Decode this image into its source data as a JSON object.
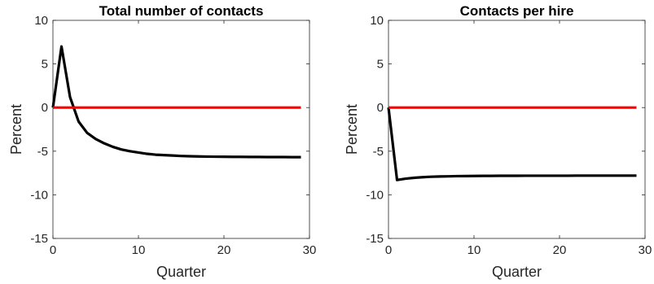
{
  "chart_data": [
    {
      "type": "line",
      "title": "Total number of contacts",
      "xlabel": "Quarter",
      "ylabel": "Percent",
      "xlim": [
        0,
        30
      ],
      "ylim": [
        -15,
        10
      ],
      "xticks": [
        "0",
        "10",
        "20",
        "30"
      ],
      "yticks": [
        "10",
        "5",
        "0",
        "-5",
        "-10",
        "-15"
      ],
      "grid": false,
      "series": [
        {
          "color": "#000000",
          "x": [
            0,
            1,
            2,
            3,
            4,
            5,
            6,
            7,
            8,
            9,
            10,
            11,
            12,
            13,
            14,
            15,
            16,
            17,
            18,
            19,
            20,
            21,
            22,
            23,
            24,
            25,
            26,
            27,
            28,
            29
          ],
          "values": [
            0,
            7.0,
            1.2,
            -1.6,
            -2.9,
            -3.6,
            -4.1,
            -4.5,
            -4.8,
            -5.0,
            -5.15,
            -5.3,
            -5.4,
            -5.45,
            -5.5,
            -5.55,
            -5.58,
            -5.6,
            -5.62,
            -5.63,
            -5.64,
            -5.65,
            -5.65,
            -5.66,
            -5.66,
            -5.67,
            -5.67,
            -5.67,
            -5.68,
            -5.68
          ]
        },
        {
          "color": "#ff0000",
          "x": [
            0,
            29
          ],
          "values": [
            0,
            0
          ]
        }
      ]
    },
    {
      "type": "line",
      "title": "Contacts per hire",
      "xlabel": "Quarter",
      "ylabel": "Percent",
      "xlim": [
        0,
        30
      ],
      "ylim": [
        -15,
        10
      ],
      "xticks": [
        "0",
        "10",
        "20",
        "30"
      ],
      "yticks": [
        "10",
        "5",
        "0",
        "-5",
        "-10",
        "-15"
      ],
      "grid": false,
      "series": [
        {
          "color": "#000000",
          "x": [
            0,
            1,
            2,
            3,
            4,
            5,
            6,
            7,
            8,
            9,
            10,
            11,
            12,
            13,
            14,
            15,
            16,
            17,
            18,
            19,
            20,
            21,
            22,
            23,
            24,
            25,
            26,
            27,
            28,
            29
          ],
          "values": [
            0,
            -8.3,
            -8.15,
            -8.05,
            -7.98,
            -7.93,
            -7.9,
            -7.88,
            -7.86,
            -7.85,
            -7.84,
            -7.83,
            -7.83,
            -7.82,
            -7.82,
            -7.82,
            -7.81,
            -7.81,
            -7.81,
            -7.81,
            -7.81,
            -7.81,
            -7.8,
            -7.8,
            -7.8,
            -7.8,
            -7.8,
            -7.8,
            -7.8,
            -7.8
          ]
        },
        {
          "color": "#ff0000",
          "x": [
            0,
            29
          ],
          "values": [
            0,
            0
          ]
        }
      ]
    }
  ]
}
